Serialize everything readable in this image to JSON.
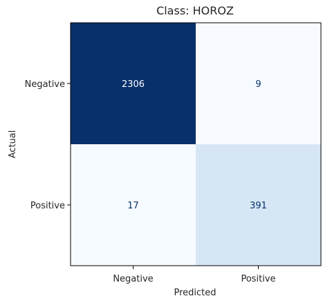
{
  "chart_data": {
    "type": "heatmap",
    "title": "Class: HOROZ",
    "xlabel": "Predicted",
    "ylabel": "Actual",
    "x_categories": [
      "Negative",
      "Positive"
    ],
    "y_categories": [
      "Negative",
      "Positive"
    ],
    "cells": [
      {
        "row": 0,
        "col": 0,
        "value": 2306,
        "label": "2306"
      },
      {
        "row": 0,
        "col": 1,
        "value": 9,
        "label": "9"
      },
      {
        "row": 1,
        "col": 0,
        "value": 17,
        "label": "17"
      },
      {
        "row": 1,
        "col": 1,
        "value": 391,
        "label": "391"
      }
    ],
    "colormap": "Blues",
    "color_low": "#f7fbff",
    "color_high": "#08306b",
    "grid": false
  }
}
